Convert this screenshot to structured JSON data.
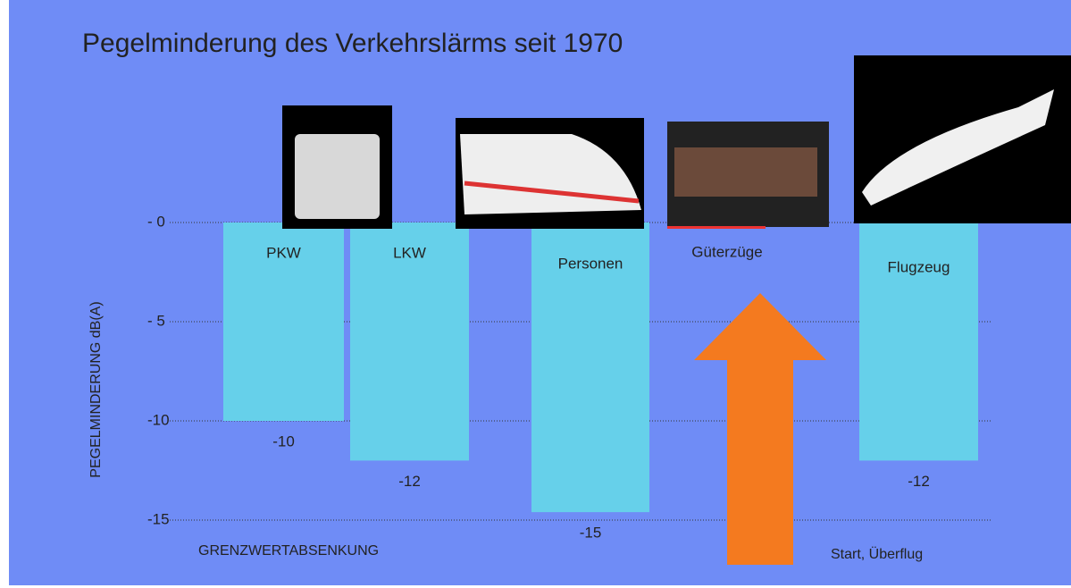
{
  "chart_data": {
    "type": "bar",
    "title": "Pegelminderung des Verkehrslärms seit 1970",
    "y_label": "PEGELMINDERUNG dB(A)",
    "categories": [
      "PKW",
      "LKW",
      "Personen",
      "Güterzüge",
      "Flugzeug"
    ],
    "values": [
      -10,
      -12,
      -14.6,
      null,
      -12
    ],
    "value_labels": [
      "-10",
      "-12",
      "-15",
      null,
      "-12"
    ],
    "color": "#66d0ea",
    "ylim": [
      -15,
      0
    ],
    "yticks": [
      {
        "value": 0,
        "label": "- 0"
      },
      {
        "value": -5,
        "label": "- 5"
      },
      -10,
      -15
    ],
    "grid": true,
    "annotations": [
      "GRENZWERTABSENKUNG",
      "Start, Überflug"
    ]
  }
}
